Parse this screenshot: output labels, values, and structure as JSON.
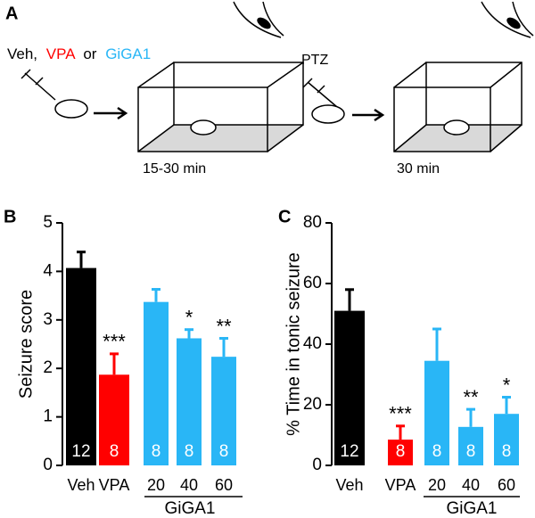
{
  "panel_labels": [
    "A",
    "B",
    "C"
  ],
  "diagram": {
    "treatments": [
      "Veh,",
      "VPA",
      "or",
      "GiGA1"
    ],
    "treatment_colors": [
      "#000000",
      "#ff0000",
      "#000000",
      "#29b6f6"
    ],
    "challenge": "PTZ",
    "durations": [
      "15-30 min",
      "30 min"
    ]
  },
  "chart_data": [
    {
      "type": "bar",
      "ylabel": "Seizure score",
      "categories": [
        "Veh",
        "VPA",
        "20",
        "40",
        "60"
      ],
      "values": [
        4.07,
        1.87,
        3.37,
        2.62,
        2.24
      ],
      "errors": [
        0.33,
        0.43,
        0.26,
        0.18,
        0.38
      ],
      "colors": [
        "#000000",
        "#ff0000",
        "#29b6f6",
        "#29b6f6",
        "#29b6f6"
      ],
      "n": [
        12,
        8,
        8,
        8,
        8
      ],
      "significance": [
        null,
        "***",
        null,
        "*",
        "**"
      ],
      "group": {
        "label": "GiGA1",
        "from": 2,
        "to": 4
      },
      "ylim": [
        0,
        5
      ],
      "yticks": [
        0,
        1,
        2,
        3,
        4,
        5
      ]
    },
    {
      "type": "bar",
      "ylabel": "% Time in tonic seizure",
      "categories": [
        "Veh",
        "VPA",
        "20",
        "40",
        "60"
      ],
      "values": [
        51,
        8.5,
        34.5,
        12.7,
        17
      ],
      "errors": [
        7,
        4.5,
        10.5,
        5.8,
        5.5
      ],
      "colors": [
        "#000000",
        "#ff0000",
        "#29b6f6",
        "#29b6f6",
        "#29b6f6"
      ],
      "n": [
        12,
        8,
        8,
        8,
        8
      ],
      "significance": [
        null,
        "***",
        null,
        "**",
        "*"
      ],
      "group": {
        "label": "GiGA1",
        "from": 2,
        "to": 4
      },
      "ylim": [
        0,
        80
      ],
      "yticks": [
        0,
        20,
        40,
        60,
        80
      ]
    }
  ]
}
